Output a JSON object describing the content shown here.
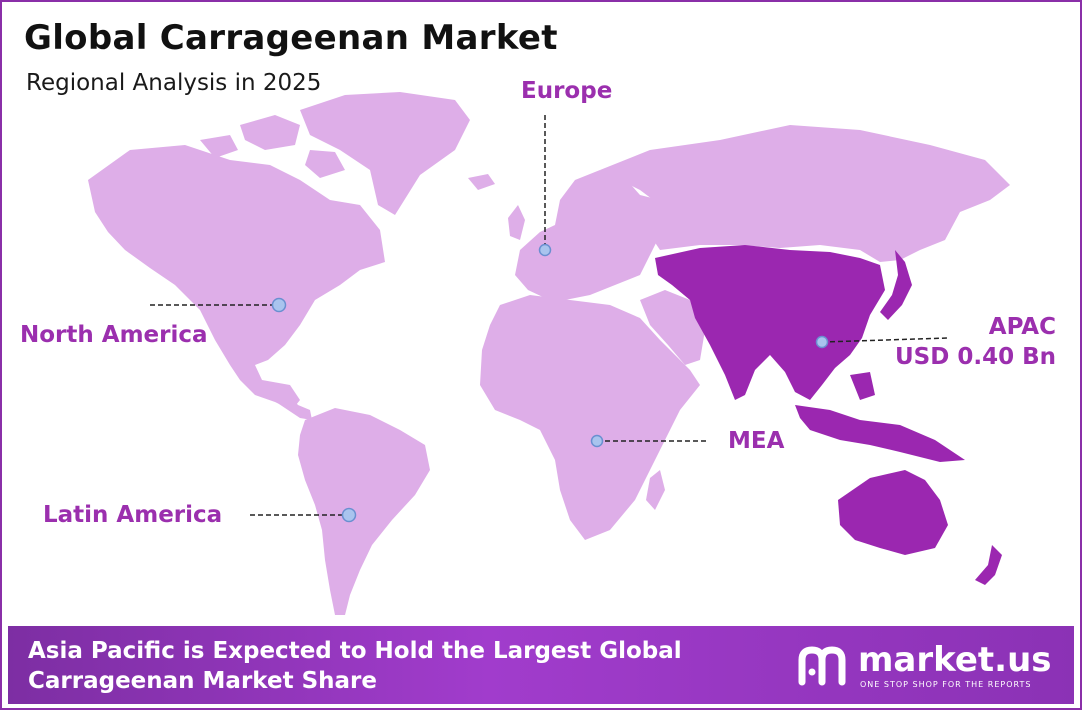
{
  "header": {
    "title": "Global Carrageenan Market",
    "subtitle": "Regional Analysis in 2025"
  },
  "regions": {
    "north_america": "North America",
    "europe": "Europe",
    "apac_name": "APAC",
    "apac_value": "USD 0.40 Bn",
    "mea": "MEA",
    "latin_america": "Latin America"
  },
  "banner": {
    "line1": "Asia Pacific is Expected to Hold the Largest Global",
    "line2": "Carrageenan  Market Share"
  },
  "logo": {
    "name": "market.us",
    "tagline": "ONE STOP SHOP FOR THE REPORTS"
  },
  "colors": {
    "land": "#deaee8",
    "apac_highlight": "#9b27b0",
    "accent": "#9b2fae",
    "banner": "#8b32b5"
  }
}
